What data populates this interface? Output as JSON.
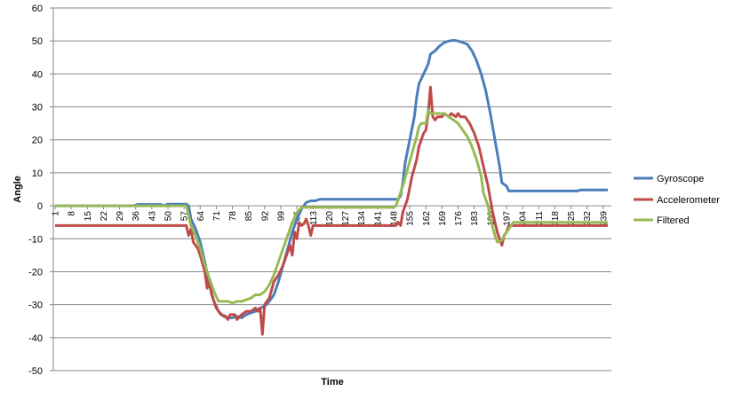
{
  "chart_data": {
    "type": "line",
    "xlabel": "Time",
    "ylabel": "Angle",
    "ylim": [
      -50,
      60
    ],
    "yticks": [
      "60",
      "50",
      "40",
      "30",
      "20",
      "10",
      "0",
      "-10",
      "-20",
      "-30",
      "-40",
      "-50"
    ],
    "xlim": [
      1,
      241
    ],
    "xticks": [
      "1",
      "8",
      "15",
      "22",
      "29",
      "36",
      "43",
      "50",
      "57",
      "64",
      "71",
      "78",
      "85",
      "92",
      "99",
      "106",
      "113",
      "120",
      "127",
      "134",
      "141",
      "148",
      "155",
      "162",
      "169",
      "176",
      "183",
      "190",
      "197",
      "204",
      "211",
      "218",
      "225",
      "232",
      "239"
    ],
    "grid": "horizontal",
    "legend": "right",
    "series": [
      {
        "name": "Gyroscope",
        "color": "#4a7ebb",
        "points": [
          [
            1,
            0
          ],
          [
            35,
            0
          ],
          [
            37,
            0.4
          ],
          [
            45,
            0.4
          ],
          [
            47,
            0.4
          ],
          [
            48,
            0
          ],
          [
            50,
            0.5
          ],
          [
            58,
            0.5
          ],
          [
            59,
            0
          ],
          [
            60,
            -4
          ],
          [
            62,
            -7
          ],
          [
            64,
            -11
          ],
          [
            66,
            -17
          ],
          [
            68,
            -24
          ],
          [
            70,
            -29
          ],
          [
            72,
            -32
          ],
          [
            74,
            -33.5
          ],
          [
            76,
            -34
          ],
          [
            78,
            -34
          ],
          [
            80,
            -33.5
          ],
          [
            82,
            -34
          ],
          [
            84,
            -33
          ],
          [
            86,
            -32.5
          ],
          [
            88,
            -32
          ],
          [
            90,
            -31
          ],
          [
            92,
            -30.5
          ],
          [
            94,
            -29
          ],
          [
            96,
            -27
          ],
          [
            98,
            -23
          ],
          [
            100,
            -18
          ],
          [
            102,
            -13
          ],
          [
            104,
            -8
          ],
          [
            106,
            -4
          ],
          [
            108,
            -1
          ],
          [
            110,
            1
          ],
          [
            112,
            1.5
          ],
          [
            114,
            1.5
          ],
          [
            116,
            2
          ],
          [
            150,
            2
          ],
          [
            151,
            3
          ],
          [
            152,
            7
          ],
          [
            153,
            13
          ],
          [
            155,
            20
          ],
          [
            157,
            27
          ],
          [
            158,
            33
          ],
          [
            159,
            37
          ],
          [
            161,
            40
          ],
          [
            163,
            43
          ],
          [
            164,
            46
          ],
          [
            166,
            47
          ],
          [
            168,
            48.5
          ],
          [
            170,
            49.5
          ],
          [
            172,
            50
          ],
          [
            174,
            50.2
          ],
          [
            176,
            50
          ],
          [
            178,
            49.5
          ],
          [
            180,
            49
          ],
          [
            182,
            47
          ],
          [
            184,
            44
          ],
          [
            186,
            40
          ],
          [
            188,
            35
          ],
          [
            190,
            28
          ],
          [
            192,
            20
          ],
          [
            194,
            12
          ],
          [
            195,
            7
          ],
          [
            197,
            6
          ],
          [
            198,
            4.5
          ],
          [
            228,
            4.5
          ],
          [
            229,
            4.8
          ],
          [
            241,
            4.8
          ]
        ]
      },
      {
        "name": "Accelerometer",
        "color": "#be4b48",
        "points": [
          [
            1,
            -6
          ],
          [
            57,
            -6
          ],
          [
            58,
            -6
          ],
          [
            59,
            -9
          ],
          [
            60,
            -7
          ],
          [
            61,
            -11
          ],
          [
            63,
            -13
          ],
          [
            64,
            -15
          ],
          [
            66,
            -20
          ],
          [
            67,
            -25
          ],
          [
            68,
            -23
          ],
          [
            69,
            -27
          ],
          [
            71,
            -31
          ],
          [
            73,
            -33
          ],
          [
            75,
            -33.5
          ],
          [
            76,
            -34.5
          ],
          [
            77,
            -33
          ],
          [
            79,
            -33
          ],
          [
            80,
            -34.5
          ],
          [
            82,
            -33
          ],
          [
            84,
            -32
          ],
          [
            86,
            -32
          ],
          [
            88,
            -31
          ],
          [
            89,
            -32
          ],
          [
            90,
            -31
          ],
          [
            91,
            -39
          ],
          [
            92,
            -30
          ],
          [
            94,
            -28
          ],
          [
            96,
            -23
          ],
          [
            98,
            -21
          ],
          [
            100,
            -18
          ],
          [
            101,
            -16
          ],
          [
            103,
            -12
          ],
          [
            104,
            -15
          ],
          [
            105,
            -8
          ],
          [
            106,
            -10
          ],
          [
            107,
            -5
          ],
          [
            108,
            -6
          ],
          [
            109,
            -5.5
          ],
          [
            110,
            -4
          ],
          [
            111,
            -6
          ],
          [
            112,
            -9
          ],
          [
            113,
            -6
          ],
          [
            114,
            -6
          ],
          [
            118,
            -6
          ],
          [
            119,
            -6
          ],
          [
            148,
            -6
          ],
          [
            149,
            -6
          ],
          [
            150,
            -5
          ],
          [
            151,
            -6
          ],
          [
            152,
            -2
          ],
          [
            154,
            2
          ],
          [
            156,
            9
          ],
          [
            158,
            14
          ],
          [
            159,
            18
          ],
          [
            161,
            22
          ],
          [
            162,
            23
          ],
          [
            163,
            28
          ],
          [
            164,
            36
          ],
          [
            165,
            27
          ],
          [
            166,
            26
          ],
          [
            167,
            27
          ],
          [
            169,
            27
          ],
          [
            170,
            28
          ],
          [
            172,
            27
          ],
          [
            173,
            28
          ],
          [
            175,
            27
          ],
          [
            176,
            28
          ],
          [
            177,
            27
          ],
          [
            179,
            27
          ],
          [
            181,
            25
          ],
          [
            183,
            22
          ],
          [
            185,
            18
          ],
          [
            187,
            12
          ],
          [
            189,
            6
          ],
          [
            190,
            2
          ],
          [
            191,
            -2
          ],
          [
            193,
            -8
          ],
          [
            194,
            -10
          ],
          [
            195,
            -12
          ],
          [
            196,
            -9
          ],
          [
            197,
            -8
          ],
          [
            198,
            -6
          ],
          [
            241,
            -6
          ]
        ]
      },
      {
        "name": "Filtered",
        "color": "#98b954",
        "points": [
          [
            1,
            0
          ],
          [
            58,
            0
          ],
          [
            59,
            -3
          ],
          [
            60,
            -6
          ],
          [
            62,
            -9
          ],
          [
            64,
            -13
          ],
          [
            66,
            -18
          ],
          [
            68,
            -22
          ],
          [
            70,
            -26
          ],
          [
            72,
            -29
          ],
          [
            74,
            -29
          ],
          [
            76,
            -29
          ],
          [
            78,
            -29.5
          ],
          [
            80,
            -29
          ],
          [
            82,
            -29
          ],
          [
            84,
            -28.5
          ],
          [
            86,
            -28
          ],
          [
            88,
            -27
          ],
          [
            90,
            -27
          ],
          [
            92,
            -26
          ],
          [
            94,
            -24
          ],
          [
            96,
            -21
          ],
          [
            98,
            -17
          ],
          [
            100,
            -13
          ],
          [
            102,
            -9
          ],
          [
            104,
            -5
          ],
          [
            106,
            -2
          ],
          [
            108,
            -0.5
          ],
          [
            110,
            -0.5
          ],
          [
            148,
            -0.5
          ],
          [
            149,
            0
          ],
          [
            150,
            2
          ],
          [
            152,
            6
          ],
          [
            154,
            11
          ],
          [
            156,
            16
          ],
          [
            158,
            21
          ],
          [
            159,
            24
          ],
          [
            160,
            25
          ],
          [
            162,
            25
          ],
          [
            163,
            29
          ],
          [
            164,
            28
          ],
          [
            166,
            28
          ],
          [
            170,
            28
          ],
          [
            172,
            27
          ],
          [
            174,
            26
          ],
          [
            176,
            25
          ],
          [
            178,
            23
          ],
          [
            180,
            21
          ],
          [
            182,
            18
          ],
          [
            184,
            14
          ],
          [
            186,
            9
          ],
          [
            187,
            4
          ],
          [
            189,
            0
          ],
          [
            190,
            -4
          ],
          [
            192,
            -9
          ],
          [
            193,
            -11
          ],
          [
            195,
            -10.5
          ],
          [
            196,
            -9
          ],
          [
            198,
            -7
          ],
          [
            200,
            -5
          ],
          [
            241,
            -5
          ]
        ]
      }
    ]
  }
}
